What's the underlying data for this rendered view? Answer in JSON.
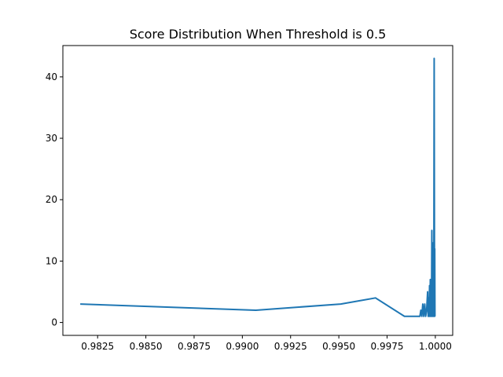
{
  "chart_data": {
    "type": "line",
    "title": "Score Distribution When Threshold is 0.5",
    "xlabel": "",
    "ylabel": "",
    "xlim": [
      0.9807,
      1.0009
    ],
    "ylim": [
      -2.1,
      45.1
    ],
    "grid": false,
    "x_ticks": [
      {
        "value": 0.9825,
        "label": "0.9825"
      },
      {
        "value": 0.985,
        "label": "0.9850"
      },
      {
        "value": 0.9875,
        "label": "0.9875"
      },
      {
        "value": 0.99,
        "label": "0.9900"
      },
      {
        "value": 0.9925,
        "label": "0.9925"
      },
      {
        "value": 0.995,
        "label": "0.9950"
      },
      {
        "value": 0.9975,
        "label": "0.9975"
      },
      {
        "value": 1.0,
        "label": "1.0000"
      }
    ],
    "y_ticks": [
      {
        "value": 0,
        "label": "0"
      },
      {
        "value": 10,
        "label": "10"
      },
      {
        "value": 20,
        "label": "20"
      },
      {
        "value": 30,
        "label": "30"
      },
      {
        "value": 40,
        "label": "40"
      }
    ],
    "series": [
      {
        "color": "#1f77b4",
        "x": [
          0.9816,
          0.9907,
          0.9951,
          0.9969,
          0.9984,
          0.9992,
          0.99925,
          0.9993,
          0.99935,
          0.9994,
          0.99945,
          0.9995,
          0.99955,
          0.9996,
          0.99963,
          0.99966,
          0.99968,
          0.9997,
          0.99972,
          0.99974,
          0.99976,
          0.99978,
          0.9998,
          0.99982,
          0.99984,
          0.99986,
          0.99988,
          0.9999,
          0.99992,
          0.99994,
          0.99996,
          0.99997,
          0.99998,
          0.99999
        ],
        "y": [
          3,
          2,
          3,
          4,
          1,
          1,
          2,
          1,
          3,
          1,
          3,
          1,
          2,
          5,
          1,
          4,
          1,
          6,
          1,
          7,
          1,
          7,
          1,
          15,
          1,
          10,
          1,
          13,
          1,
          43,
          1,
          12,
          1,
          1
        ]
      }
    ]
  }
}
